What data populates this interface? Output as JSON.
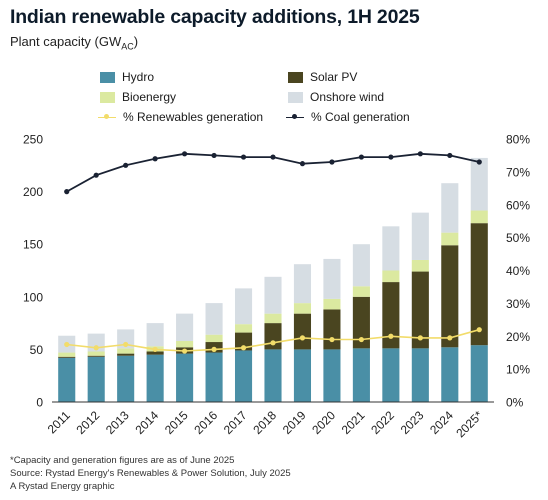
{
  "title": "Indian renewable capacity additions, 1H 2025",
  "subtitle": "Plant capacity (GW",
  "subtitle_sub": "AC",
  "subtitle_end": ")",
  "legend": {
    "hydro": "Hydro",
    "solar": "Solar PV",
    "bio": "Bioenergy",
    "wind": "Onshore wind",
    "ren": "% Renewables generation",
    "coal": "% Coal generation"
  },
  "colors": {
    "hydro": "#4a8fa6",
    "solar": "#4a4520",
    "bio": "#dbe9a0",
    "wind": "#d6dde3",
    "ren": "#f2dc6a",
    "coal": "#1a2233"
  },
  "footnotes": [
    "*Capacity and generation figures are as of June 2025",
    "Source: Rystad Energy's Renewables & Power Solution, July 2025",
    "A Rystad Energy graphic"
  ],
  "chart_data": {
    "type": "bar",
    "stacked": true,
    "categories": [
      "2011",
      "2012",
      "2013",
      "2014",
      "2015",
      "2016",
      "2017",
      "2018",
      "2019",
      "2020",
      "2021",
      "2022",
      "2023",
      "2024",
      "2025*"
    ],
    "series": [
      {
        "name": "Hydro",
        "values": [
          42,
          43,
          44,
          45,
          46,
          47,
          49,
          50,
          50,
          50,
          51,
          51,
          51,
          52,
          54
        ]
      },
      {
        "name": "Solar PV",
        "values": [
          1,
          1,
          2,
          3,
          6,
          10,
          17,
          25,
          34,
          38,
          49,
          63,
          73,
          97,
          116
        ]
      },
      {
        "name": "Bioenergy",
        "values": [
          4,
          4,
          5,
          5,
          6,
          7,
          8,
          9,
          10,
          10,
          10,
          11,
          11,
          12,
          12
        ]
      },
      {
        "name": "Onshore wind",
        "values": [
          16,
          17,
          18,
          22,
          26,
          30,
          34,
          35,
          37,
          38,
          40,
          42,
          45,
          47,
          50
        ]
      }
    ],
    "lines": [
      {
        "name": "% Renewables generation",
        "axis": "right",
        "values": [
          17.5,
          16.5,
          17.5,
          16,
          15.5,
          16,
          16.5,
          18,
          19.5,
          19,
          19,
          20,
          19.5,
          19.5,
          22
        ]
      },
      {
        "name": "% Coal generation",
        "axis": "right",
        "values": [
          64,
          69,
          72,
          74,
          75.5,
          75,
          74.5,
          74.5,
          72.5,
          73,
          74.5,
          74.5,
          75.5,
          75,
          73
        ]
      }
    ],
    "ylim": [
      0,
      250
    ],
    "yticks": [
      "0",
      "50",
      "100",
      "150",
      "200",
      "250"
    ],
    "ylim_right": [
      0,
      80
    ],
    "yticks_right": [
      "0%",
      "10%",
      "20%",
      "30%",
      "40%",
      "50%",
      "60%",
      "70%",
      "80%"
    ]
  }
}
